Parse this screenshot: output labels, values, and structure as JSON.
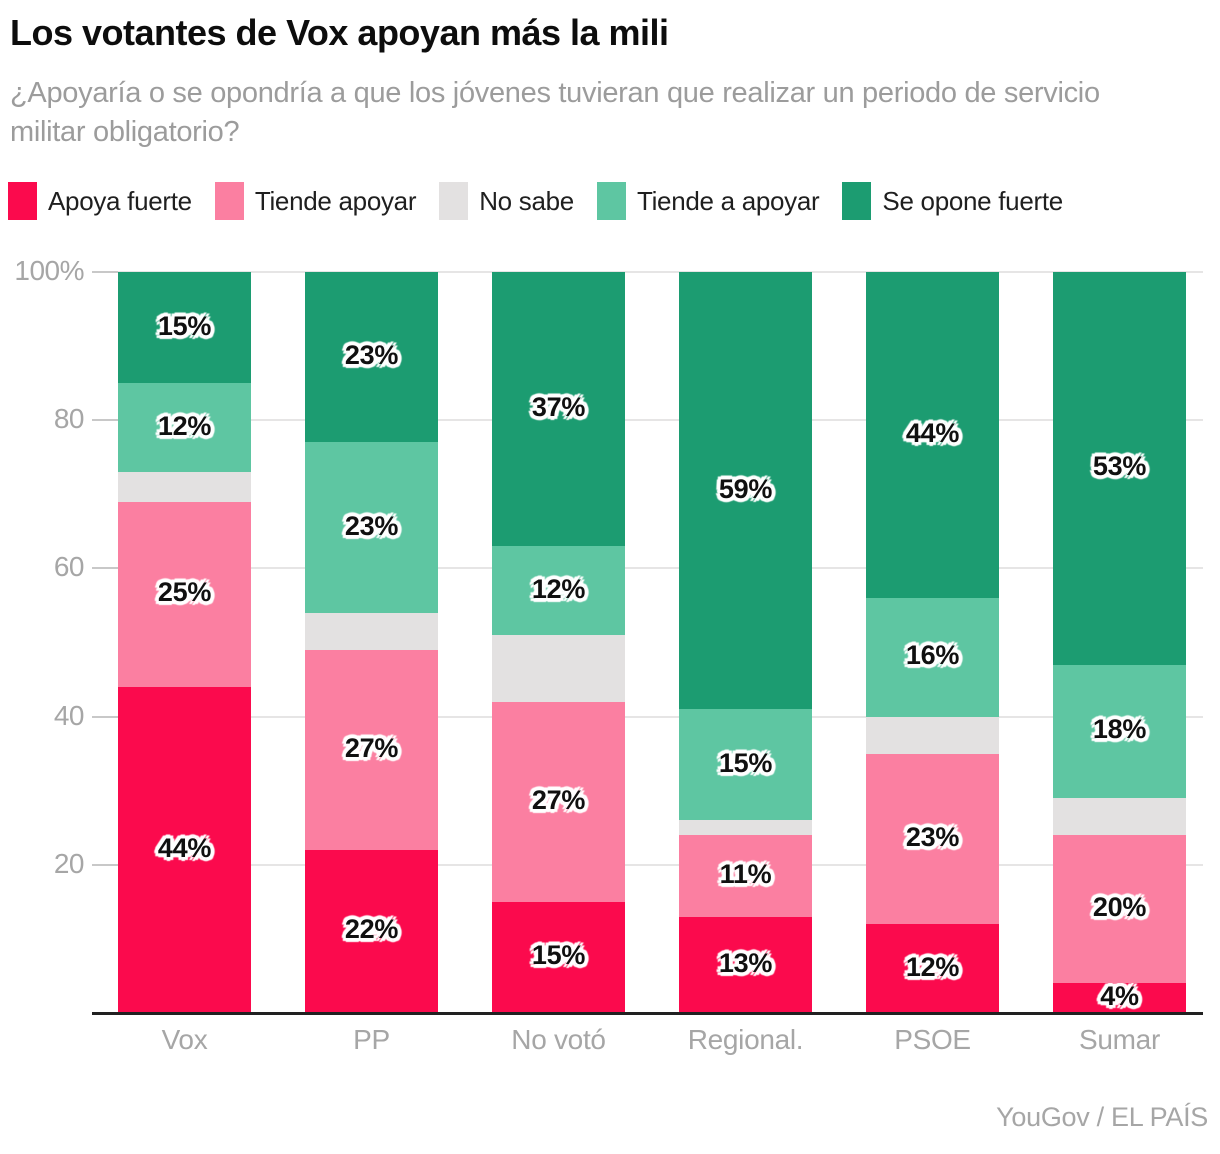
{
  "header": {
    "title": "Los votantes de Vox apoyan más la mili",
    "subtitle": "¿Apoyaría o se opondría a que los jóvenes tuvieran que realizar un periodo de servicio militar obligatorio?"
  },
  "legend": [
    {
      "label": "Apoya fuerte",
      "color": "#FB0A4D"
    },
    {
      "label": "Tiende apoyar",
      "color": "#FB7FA1"
    },
    {
      "label": "No sabe",
      "color": "#E3E1E1"
    },
    {
      "label": "Tiende a apoyar",
      "color": "#5EC6A2"
    },
    {
      "label": "Se opone fuerte",
      "color": "#1C9C71"
    }
  ],
  "chart_data": {
    "type": "bar",
    "stacked": true,
    "title": "Los votantes de Vox apoyan más la mili",
    "categories": [
      "Vox",
      "PP",
      "No votó",
      "Regional.",
      "PSOE",
      "Sumar"
    ],
    "series": [
      {
        "name": "Apoya fuerte",
        "color": "#FB0A4D",
        "labeled": true,
        "values": [
          44,
          22,
          15,
          13,
          12,
          4
        ]
      },
      {
        "name": "Tiende apoyar",
        "color": "#FB7FA1",
        "labeled": true,
        "values": [
          25,
          27,
          27,
          11,
          23,
          20
        ]
      },
      {
        "name": "No sabe",
        "color": "#E3E1E1",
        "labeled": false,
        "values": [
          4,
          5,
          9,
          2,
          5,
          5
        ]
      },
      {
        "name": "Tiende a apoyar",
        "color": "#5EC6A2",
        "labeled": true,
        "values": [
          12,
          23,
          12,
          15,
          16,
          18
        ]
      },
      {
        "name": "Se opone fuerte",
        "color": "#1C9C71",
        "labeled": true,
        "values": [
          15,
          23,
          37,
          59,
          44,
          53
        ]
      }
    ],
    "value_suffix": "%",
    "y_axis": {
      "range": [
        0,
        100
      ],
      "tick_values": [
        20,
        40,
        60,
        80,
        100
      ],
      "tick_labels": [
        "20",
        "40",
        "60",
        "80",
        "100%"
      ],
      "grid": true
    },
    "legend_position": "top"
  },
  "footer": {
    "credit": "YouGov / EL PAÍS"
  }
}
